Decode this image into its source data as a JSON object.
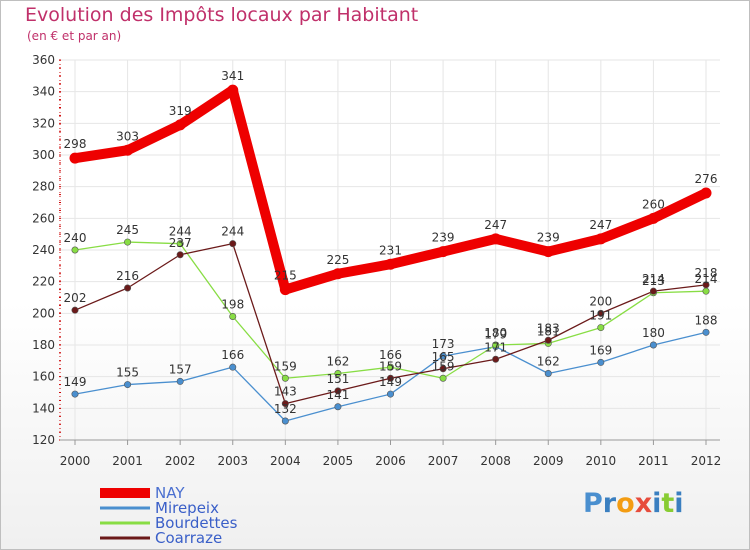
{
  "title": "Evolution des Impôts locaux par Habitant",
  "subtitle": "(en € et par an)",
  "logo_text": "Proxiti",
  "colors": {
    "title": "#c0306a",
    "axis": "#cc0000",
    "grid": "#e6e6e6"
  },
  "chart_data": {
    "type": "line",
    "title": "Evolution des Impôts locaux par Habitant",
    "subtitle": "(en € et par an)",
    "xlabel": "",
    "ylabel": "",
    "x": [
      "2000",
      "2001",
      "2002",
      "2003",
      "2004",
      "2005",
      "2006",
      "2007",
      "2008",
      "2009",
      "2010",
      "2011",
      "2012"
    ],
    "ylim": [
      120,
      360
    ],
    "yticks": [
      120,
      140,
      160,
      180,
      200,
      220,
      240,
      260,
      280,
      300,
      320,
      340,
      360
    ],
    "grid": true,
    "legend_position": "bottom-left",
    "series": [
      {
        "name": "NAY",
        "color": "#ee0000",
        "width": "thick",
        "values": [
          298,
          303,
          319,
          341,
          215,
          225,
          231,
          239,
          247,
          239,
          247,
          260,
          276
        ]
      },
      {
        "name": "Mirepeix",
        "color": "#4a8fcf",
        "width": "thin",
        "values": [
          149,
          155,
          157,
          166,
          132,
          141,
          149,
          173,
          179,
          162,
          169,
          180,
          188
        ]
      },
      {
        "name": "Bourdettes",
        "color": "#88dd44",
        "width": "thin",
        "values": [
          240,
          245,
          244,
          198,
          159,
          162,
          166,
          159,
          180,
          181,
          191,
          213,
          214
        ]
      },
      {
        "name": "Coarraze",
        "color": "#6b1a1a",
        "width": "thin",
        "values": [
          202,
          216,
          237,
          244,
          143,
          151,
          159,
          165,
          171,
          183,
          200,
          214,
          218
        ]
      }
    ]
  }
}
